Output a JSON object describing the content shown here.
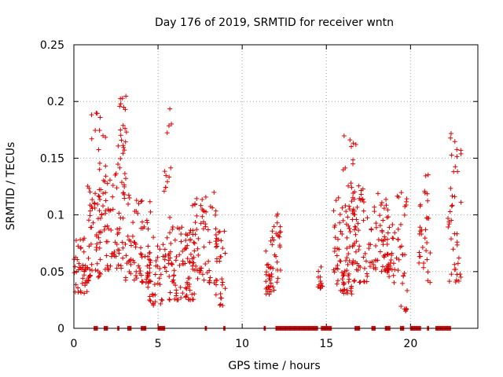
{
  "chart_data": {
    "type": "scatter",
    "title": "Day 176 of 2019, SRMTID for receiver wntn",
    "xlabel": "GPS time / hours",
    "ylabel": "SRMTID / TECUs",
    "xlim": [
      0,
      24
    ],
    "ylim": [
      0,
      0.25
    ],
    "xticks": [
      0,
      5,
      10,
      15,
      20
    ],
    "yticks": [
      0,
      0.05,
      0.1,
      0.15,
      0.2,
      0.25
    ],
    "xtick_labels": [
      "0",
      "5",
      "10",
      "15",
      "20"
    ],
    "ytick_labels": [
      "0",
      "0.05",
      "0.1",
      "0.15",
      "0.2",
      "0.25"
    ],
    "grid": true,
    "marker": "+",
    "color": "#dd0000",
    "series": [
      {
        "name": "SRMTID",
        "clusters": [
          {
            "x": [
              0.0,
              0.8
            ],
            "y": [
              0.03,
              0.08
            ],
            "n": 40
          },
          {
            "x": [
              0.8,
              1.6
            ],
            "y": [
              0.04,
              0.13
            ],
            "n": 55
          },
          {
            "x": [
              1.0,
              1.9
            ],
            "y": [
              0.1,
              0.19
            ],
            "n": 26
          },
          {
            "x": [
              1.8,
              3.0
            ],
            "y": [
              0.05,
              0.14
            ],
            "n": 60
          },
          {
            "x": [
              2.6,
              3.2
            ],
            "y": [
              0.13,
              0.205
            ],
            "n": 24
          },
          {
            "x": [
              3.0,
              4.6
            ],
            "y": [
              0.04,
              0.12
            ],
            "n": 75
          },
          {
            "x": [
              4.3,
              5.3
            ],
            "y": [
              0.02,
              0.09
            ],
            "n": 35
          },
          {
            "x": [
              5.3,
              5.8
            ],
            "y": [
              0.05,
              0.195
            ],
            "n": 26
          },
          {
            "x": [
              5.6,
              7.2
            ],
            "y": [
              0.025,
              0.09
            ],
            "n": 85
          },
          {
            "x": [
              7.0,
              8.5
            ],
            "y": [
              0.04,
              0.12
            ],
            "n": 60
          },
          {
            "x": [
              8.4,
              9.0
            ],
            "y": [
              0.02,
              0.09
            ],
            "n": 30
          },
          {
            "x": [
              11.4,
              12.0
            ],
            "y": [
              0.03,
              0.09
            ],
            "n": 36
          },
          {
            "x": [
              12.0,
              12.3
            ],
            "y": [
              0.04,
              0.105
            ],
            "n": 18
          },
          {
            "x": [
              14.5,
              14.8
            ],
            "y": [
              0.035,
              0.055
            ],
            "n": 14
          },
          {
            "x": [
              15.4,
              16.4
            ],
            "y": [
              0.03,
              0.12
            ],
            "n": 55
          },
          {
            "x": [
              16.0,
              16.8
            ],
            "y": [
              0.03,
              0.17
            ],
            "n": 40
          },
          {
            "x": [
              16.5,
              17.5
            ],
            "y": [
              0.04,
              0.13
            ],
            "n": 50
          },
          {
            "x": [
              17.5,
              18.7
            ],
            "y": [
              0.05,
              0.12
            ],
            "n": 55
          },
          {
            "x": [
              18.6,
              19.3
            ],
            "y": [
              0.04,
              0.1
            ],
            "n": 30
          },
          {
            "x": [
              19.2,
              19.8
            ],
            "y": [
              0.015,
              0.125
            ],
            "n": 26
          },
          {
            "x": [
              20.5,
              21.2
            ],
            "y": [
              0.04,
              0.14
            ],
            "n": 32
          },
          {
            "x": [
              22.2,
              23.0
            ],
            "y": [
              0.04,
              0.175
            ],
            "n": 42
          }
        ],
        "zero_ranges": [
          [
            1.2,
            1.4
          ],
          [
            1.8,
            2.0
          ],
          [
            2.6,
            2.7
          ],
          [
            3.2,
            3.4
          ],
          [
            4.0,
            4.3
          ],
          [
            5.0,
            5.4
          ],
          [
            7.8,
            7.9
          ],
          [
            8.9,
            9.0
          ],
          [
            11.3,
            11.4
          ],
          [
            12.0,
            14.5
          ],
          [
            14.7,
            15.3
          ],
          [
            16.7,
            17.0
          ],
          [
            17.7,
            17.9
          ],
          [
            18.5,
            18.8
          ],
          [
            19.4,
            19.6
          ],
          [
            20.0,
            20.6
          ],
          [
            21.0,
            21.1
          ],
          [
            21.5,
            22.4
          ]
        ]
      }
    ]
  }
}
